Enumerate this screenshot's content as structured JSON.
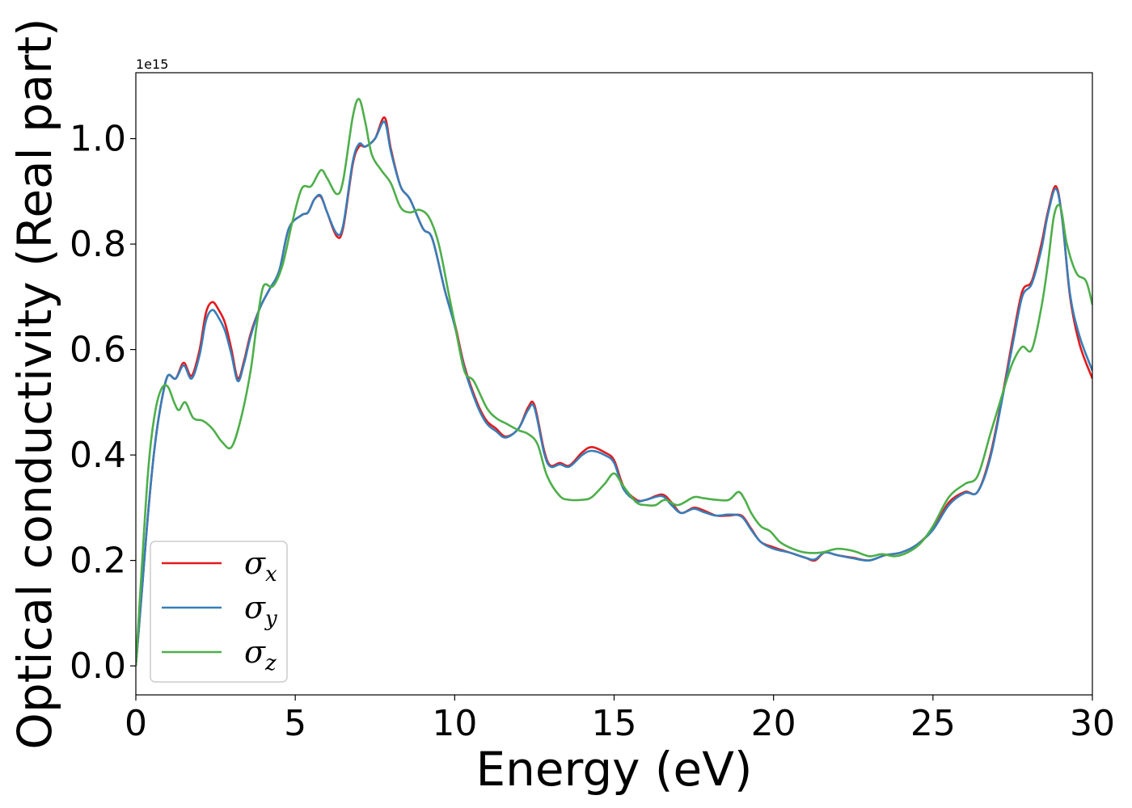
{
  "chart_data": {
    "type": "line",
    "xlabel": "Energy (eV)",
    "ylabel": "Optical conductivity (Real part)",
    "y_offset_label": "1e15",
    "xlim": [
      0,
      30
    ],
    "ylim": [
      -0.055,
      1.125
    ],
    "y_scale_factor": 1000000000000000.0,
    "xticks": [
      0,
      5,
      10,
      15,
      20,
      25,
      30
    ],
    "xtick_labels": [
      "0",
      "5",
      "10",
      "15",
      "20",
      "25",
      "30"
    ],
    "yticks": [
      0.0,
      0.2,
      0.4,
      0.6,
      0.8,
      1.0
    ],
    "ytick_labels": [
      "0.0",
      "0.2",
      "0.4",
      "0.6",
      "0.8",
      "1.0"
    ],
    "grid": false,
    "legend_position": "lower-left",
    "series": [
      {
        "name": "σx",
        "base": "σ",
        "sub": "x",
        "color": "#e41a1c",
        "points": [
          [
            0,
            0.0
          ],
          [
            0.2,
            0.15
          ],
          [
            0.4,
            0.3
          ],
          [
            0.6,
            0.42
          ],
          [
            0.8,
            0.5
          ],
          [
            1.0,
            0.55
          ],
          [
            1.25,
            0.545
          ],
          [
            1.5,
            0.575
          ],
          [
            1.75,
            0.55
          ],
          [
            2.0,
            0.6
          ],
          [
            2.2,
            0.67
          ],
          [
            2.4,
            0.69
          ],
          [
            2.6,
            0.675
          ],
          [
            2.8,
            0.65
          ],
          [
            3.0,
            0.6
          ],
          [
            3.2,
            0.545
          ],
          [
            3.4,
            0.58
          ],
          [
            3.6,
            0.63
          ],
          [
            3.9,
            0.68
          ],
          [
            4.2,
            0.715
          ],
          [
            4.5,
            0.75
          ],
          [
            4.8,
            0.83
          ],
          [
            5.2,
            0.855
          ],
          [
            5.4,
            0.86
          ],
          [
            5.6,
            0.885
          ],
          [
            5.8,
            0.89
          ],
          [
            6.0,
            0.86
          ],
          [
            6.3,
            0.815
          ],
          [
            6.5,
            0.83
          ],
          [
            6.8,
            0.95
          ],
          [
            7.0,
            0.985
          ],
          [
            7.2,
            0.985
          ],
          [
            7.5,
            1.0
          ],
          [
            7.8,
            1.04
          ],
          [
            8.0,
            0.98
          ],
          [
            8.3,
            0.91
          ],
          [
            8.6,
            0.885
          ],
          [
            9.0,
            0.83
          ],
          [
            9.3,
            0.81
          ],
          [
            9.7,
            0.71
          ],
          [
            10.0,
            0.65
          ],
          [
            10.3,
            0.57
          ],
          [
            10.7,
            0.5
          ],
          [
            11.0,
            0.465
          ],
          [
            11.3,
            0.45
          ],
          [
            11.6,
            0.435
          ],
          [
            12.0,
            0.45
          ],
          [
            12.3,
            0.49
          ],
          [
            12.5,
            0.495
          ],
          [
            12.8,
            0.41
          ],
          [
            13.0,
            0.38
          ],
          [
            13.3,
            0.385
          ],
          [
            13.6,
            0.38
          ],
          [
            14.0,
            0.405
          ],
          [
            14.3,
            0.415
          ],
          [
            14.7,
            0.405
          ],
          [
            15.0,
            0.39
          ],
          [
            15.3,
            0.34
          ],
          [
            15.7,
            0.315
          ],
          [
            16.0,
            0.315
          ],
          [
            16.5,
            0.325
          ],
          [
            16.8,
            0.31
          ],
          [
            17.1,
            0.29
          ],
          [
            17.5,
            0.3
          ],
          [
            17.8,
            0.295
          ],
          [
            18.2,
            0.285
          ],
          [
            18.6,
            0.285
          ],
          [
            19.0,
            0.285
          ],
          [
            19.3,
            0.26
          ],
          [
            19.6,
            0.235
          ],
          [
            20.0,
            0.225
          ],
          [
            20.5,
            0.215
          ],
          [
            21.0,
            0.205
          ],
          [
            21.3,
            0.2
          ],
          [
            21.6,
            0.215
          ],
          [
            22.0,
            0.21
          ],
          [
            22.5,
            0.205
          ],
          [
            23.0,
            0.2
          ],
          [
            23.5,
            0.21
          ],
          [
            24.0,
            0.215
          ],
          [
            24.5,
            0.23
          ],
          [
            25.0,
            0.26
          ],
          [
            25.5,
            0.31
          ],
          [
            26.0,
            0.33
          ],
          [
            26.4,
            0.33
          ],
          [
            26.8,
            0.4
          ],
          [
            27.2,
            0.52
          ],
          [
            27.5,
            0.62
          ],
          [
            27.8,
            0.71
          ],
          [
            28.1,
            0.73
          ],
          [
            28.4,
            0.8
          ],
          [
            28.6,
            0.86
          ],
          [
            28.85,
            0.91
          ],
          [
            29.05,
            0.85
          ],
          [
            29.3,
            0.7
          ],
          [
            29.6,
            0.61
          ],
          [
            30.0,
            0.545
          ]
        ]
      },
      {
        "name": "σy",
        "base": "σ",
        "sub": "y",
        "color": "#377eb8",
        "points": [
          [
            0,
            0.0
          ],
          [
            0.2,
            0.15
          ],
          [
            0.4,
            0.3
          ],
          [
            0.6,
            0.42
          ],
          [
            0.8,
            0.5
          ],
          [
            1.0,
            0.55
          ],
          [
            1.25,
            0.545
          ],
          [
            1.5,
            0.57
          ],
          [
            1.75,
            0.545
          ],
          [
            2.0,
            0.59
          ],
          [
            2.2,
            0.655
          ],
          [
            2.4,
            0.675
          ],
          [
            2.6,
            0.66
          ],
          [
            2.8,
            0.635
          ],
          [
            3.0,
            0.59
          ],
          [
            3.2,
            0.54
          ],
          [
            3.4,
            0.575
          ],
          [
            3.6,
            0.625
          ],
          [
            3.9,
            0.68
          ],
          [
            4.2,
            0.715
          ],
          [
            4.5,
            0.75
          ],
          [
            4.8,
            0.83
          ],
          [
            5.2,
            0.855
          ],
          [
            5.4,
            0.86
          ],
          [
            5.6,
            0.885
          ],
          [
            5.8,
            0.892
          ],
          [
            6.0,
            0.86
          ],
          [
            6.3,
            0.82
          ],
          [
            6.5,
            0.835
          ],
          [
            6.8,
            0.955
          ],
          [
            7.0,
            0.99
          ],
          [
            7.2,
            0.985
          ],
          [
            7.5,
            1.0
          ],
          [
            7.8,
            1.032
          ],
          [
            8.0,
            0.975
          ],
          [
            8.3,
            0.91
          ],
          [
            8.6,
            0.885
          ],
          [
            9.0,
            0.83
          ],
          [
            9.3,
            0.81
          ],
          [
            9.7,
            0.71
          ],
          [
            10.0,
            0.645
          ],
          [
            10.3,
            0.565
          ],
          [
            10.7,
            0.495
          ],
          [
            11.0,
            0.46
          ],
          [
            11.3,
            0.445
          ],
          [
            11.6,
            0.433
          ],
          [
            12.0,
            0.45
          ],
          [
            12.3,
            0.485
          ],
          [
            12.5,
            0.49
          ],
          [
            12.8,
            0.405
          ],
          [
            13.0,
            0.378
          ],
          [
            13.3,
            0.382
          ],
          [
            13.6,
            0.378
          ],
          [
            14.0,
            0.4
          ],
          [
            14.3,
            0.408
          ],
          [
            14.7,
            0.4
          ],
          [
            15.0,
            0.385
          ],
          [
            15.3,
            0.335
          ],
          [
            15.7,
            0.313
          ],
          [
            16.0,
            0.315
          ],
          [
            16.5,
            0.322
          ],
          [
            16.8,
            0.305
          ],
          [
            17.1,
            0.29
          ],
          [
            17.5,
            0.298
          ],
          [
            17.8,
            0.292
          ],
          [
            18.2,
            0.285
          ],
          [
            18.6,
            0.287
          ],
          [
            19.0,
            0.283
          ],
          [
            19.3,
            0.258
          ],
          [
            19.6,
            0.235
          ],
          [
            20.0,
            0.222
          ],
          [
            20.5,
            0.215
          ],
          [
            21.0,
            0.205
          ],
          [
            21.3,
            0.202
          ],
          [
            21.6,
            0.215
          ],
          [
            22.0,
            0.21
          ],
          [
            22.5,
            0.204
          ],
          [
            23.0,
            0.2
          ],
          [
            23.5,
            0.21
          ],
          [
            24.0,
            0.215
          ],
          [
            24.5,
            0.23
          ],
          [
            25.0,
            0.258
          ],
          [
            25.5,
            0.305
          ],
          [
            26.0,
            0.328
          ],
          [
            26.4,
            0.33
          ],
          [
            26.8,
            0.395
          ],
          [
            27.2,
            0.515
          ],
          [
            27.5,
            0.61
          ],
          [
            27.8,
            0.7
          ],
          [
            28.1,
            0.725
          ],
          [
            28.4,
            0.79
          ],
          [
            28.6,
            0.855
          ],
          [
            28.85,
            0.905
          ],
          [
            29.05,
            0.85
          ],
          [
            29.3,
            0.705
          ],
          [
            29.6,
            0.625
          ],
          [
            30.0,
            0.56
          ]
        ]
      },
      {
        "name": "σz",
        "base": "σ",
        "sub": "z",
        "color": "#4daf4a",
        "points": [
          [
            0,
            0.0
          ],
          [
            0.2,
            0.2
          ],
          [
            0.4,
            0.38
          ],
          [
            0.6,
            0.48
          ],
          [
            0.8,
            0.525
          ],
          [
            1.0,
            0.53
          ],
          [
            1.2,
            0.5
          ],
          [
            1.35,
            0.485
          ],
          [
            1.55,
            0.5
          ],
          [
            1.8,
            0.47
          ],
          [
            2.1,
            0.465
          ],
          [
            2.4,
            0.45
          ],
          [
            2.7,
            0.425
          ],
          [
            3.0,
            0.415
          ],
          [
            3.3,
            0.47
          ],
          [
            3.6,
            0.56
          ],
          [
            3.8,
            0.65
          ],
          [
            4.0,
            0.72
          ],
          [
            4.3,
            0.72
          ],
          [
            4.6,
            0.76
          ],
          [
            4.9,
            0.84
          ],
          [
            5.2,
            0.905
          ],
          [
            5.5,
            0.91
          ],
          [
            5.8,
            0.94
          ],
          [
            6.0,
            0.925
          ],
          [
            6.3,
            0.895
          ],
          [
            6.5,
            0.92
          ],
          [
            6.8,
            1.04
          ],
          [
            7.0,
            1.075
          ],
          [
            7.2,
            1.03
          ],
          [
            7.4,
            0.97
          ],
          [
            7.7,
            0.94
          ],
          [
            8.0,
            0.915
          ],
          [
            8.3,
            0.87
          ],
          [
            8.6,
            0.86
          ],
          [
            8.9,
            0.865
          ],
          [
            9.2,
            0.85
          ],
          [
            9.5,
            0.8
          ],
          [
            9.8,
            0.71
          ],
          [
            10.0,
            0.65
          ],
          [
            10.3,
            0.56
          ],
          [
            10.6,
            0.54
          ],
          [
            11.0,
            0.49
          ],
          [
            11.3,
            0.47
          ],
          [
            11.6,
            0.46
          ],
          [
            12.0,
            0.447
          ],
          [
            12.3,
            0.44
          ],
          [
            12.6,
            0.42
          ],
          [
            12.9,
            0.36
          ],
          [
            13.3,
            0.322
          ],
          [
            13.6,
            0.315
          ],
          [
            14.0,
            0.315
          ],
          [
            14.3,
            0.32
          ],
          [
            14.7,
            0.345
          ],
          [
            15.0,
            0.365
          ],
          [
            15.3,
            0.34
          ],
          [
            15.7,
            0.31
          ],
          [
            16.0,
            0.305
          ],
          [
            16.3,
            0.305
          ],
          [
            16.6,
            0.315
          ],
          [
            17.0,
            0.305
          ],
          [
            17.5,
            0.32
          ],
          [
            17.8,
            0.318
          ],
          [
            18.2,
            0.315
          ],
          [
            18.6,
            0.315
          ],
          [
            18.9,
            0.33
          ],
          [
            19.1,
            0.315
          ],
          [
            19.3,
            0.29
          ],
          [
            19.6,
            0.265
          ],
          [
            19.9,
            0.255
          ],
          [
            20.2,
            0.235
          ],
          [
            20.6,
            0.222
          ],
          [
            21.0,
            0.215
          ],
          [
            21.5,
            0.215
          ],
          [
            22.0,
            0.222
          ],
          [
            22.5,
            0.218
          ],
          [
            23.0,
            0.208
          ],
          [
            23.4,
            0.212
          ],
          [
            23.8,
            0.208
          ],
          [
            24.2,
            0.215
          ],
          [
            24.6,
            0.232
          ],
          [
            25.0,
            0.265
          ],
          [
            25.5,
            0.32
          ],
          [
            26.0,
            0.345
          ],
          [
            26.4,
            0.36
          ],
          [
            26.8,
            0.44
          ],
          [
            27.2,
            0.52
          ],
          [
            27.5,
            0.575
          ],
          [
            27.8,
            0.605
          ],
          [
            28.1,
            0.6
          ],
          [
            28.4,
            0.68
          ],
          [
            28.6,
            0.76
          ],
          [
            28.8,
            0.855
          ],
          [
            29.0,
            0.87
          ],
          [
            29.2,
            0.8
          ],
          [
            29.5,
            0.745
          ],
          [
            29.8,
            0.73
          ],
          [
            30.0,
            0.685
          ]
        ]
      }
    ]
  }
}
